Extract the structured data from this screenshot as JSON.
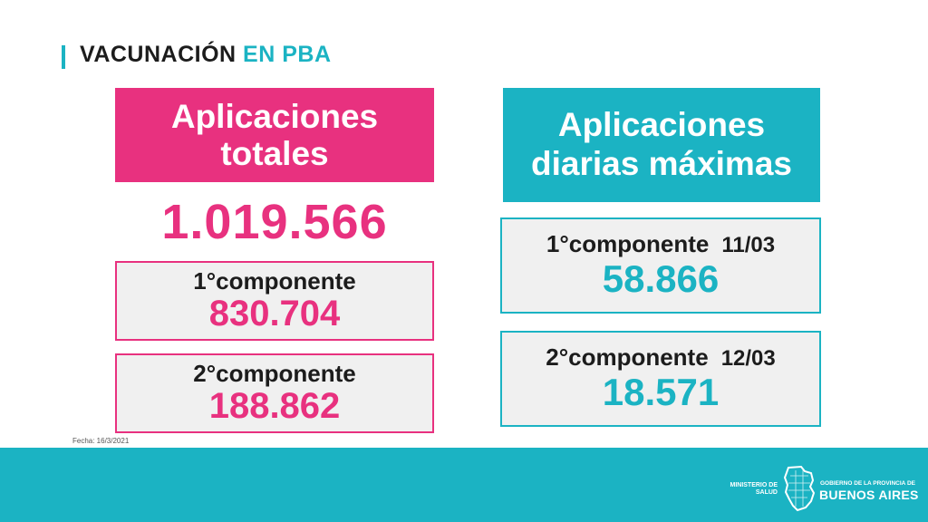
{
  "header": {
    "title_main": "VACUNACIÓN",
    "title_accent": "EN PBA"
  },
  "totals": {
    "title_line1": "Aplicaciones",
    "title_line2": "totales",
    "total": "1.019.566",
    "first": {
      "label": "1°componente",
      "value": "830.704"
    },
    "second": {
      "label": "2°componente",
      "value": "188.862"
    }
  },
  "daily_max": {
    "title_line1": "Aplicaciones",
    "title_line2": "diarias máximas",
    "first": {
      "label": "1°componente",
      "date": "11/03",
      "value": "58.866"
    },
    "second": {
      "label": "2°componente",
      "date": "12/03",
      "value": "18.571"
    }
  },
  "fecha": "Fecha: 16/3/2021",
  "footer": {
    "ministerio_line1": "MINISTERIO DE",
    "ministerio_line2": "SALUD",
    "gobierno": "GOBIERNO DE LA PROVINCIA DE",
    "provincia": "BUENOS AIRES"
  },
  "colors": {
    "pink": "#e8317f",
    "teal": "#1bb3c3",
    "box_bg": "#f0f0f0"
  }
}
